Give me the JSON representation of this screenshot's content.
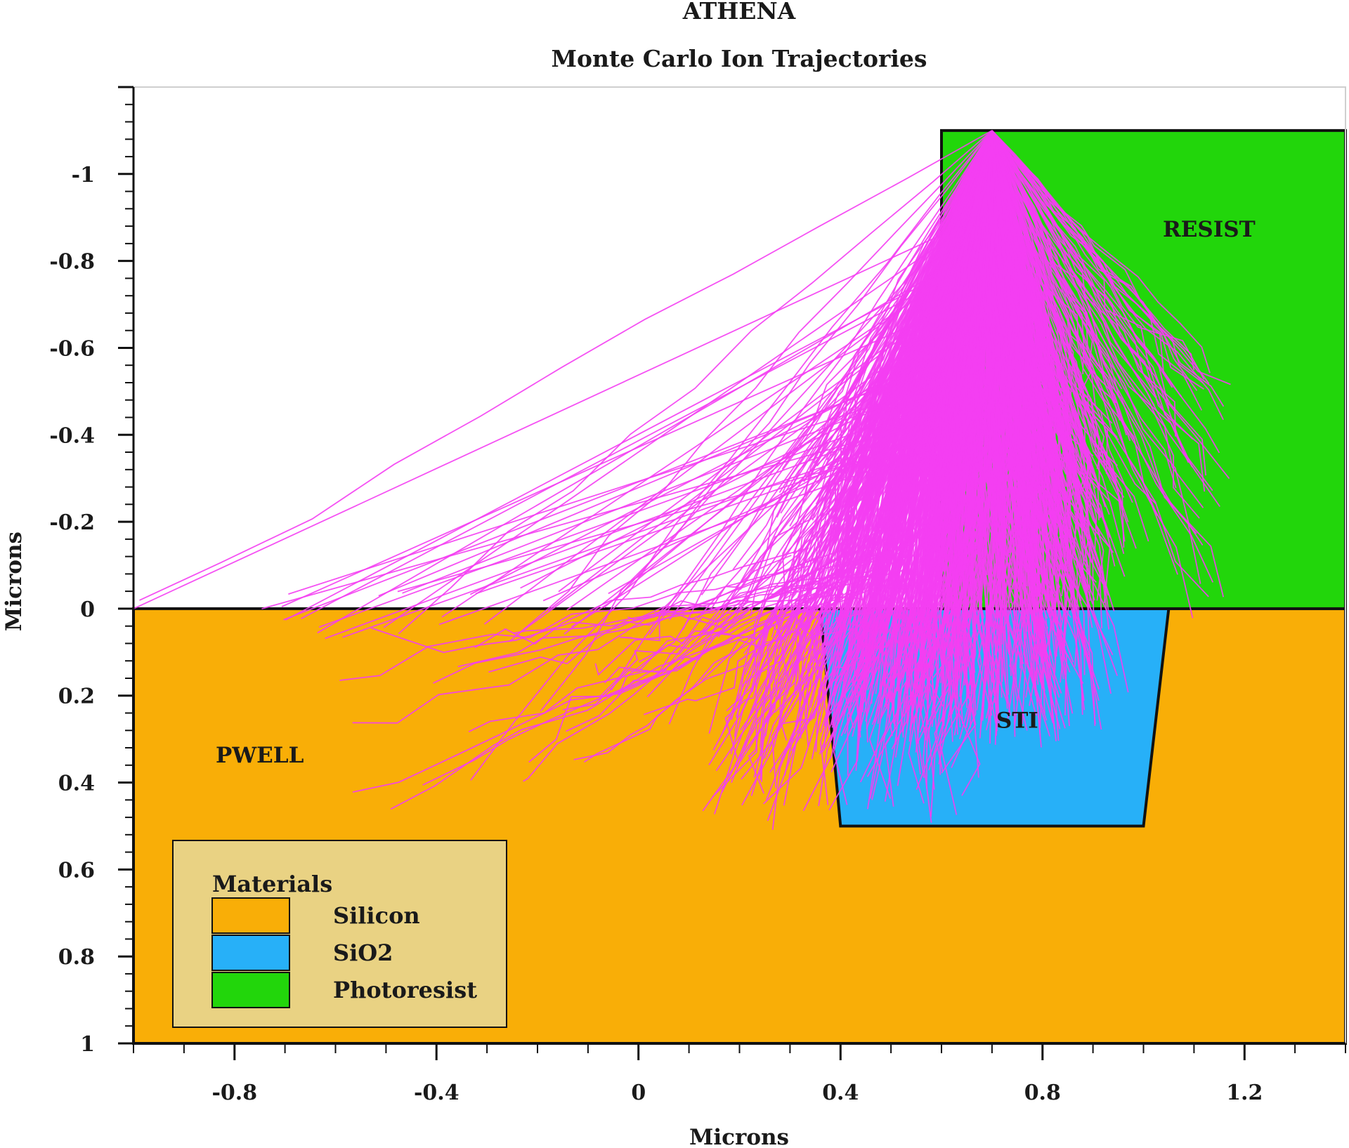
{
  "chart_data": {
    "type": "scatter",
    "title": "ATHENA",
    "subtitle": "Monte Carlo Ion Trajectories",
    "xlabel": "Microns",
    "ylabel": "Microns",
    "xlim": [
      -1.0,
      1.4
    ],
    "ylim": [
      1.0,
      -1.2
    ],
    "y_inverted": true,
    "xticks": [
      -0.8,
      -0.4,
      0,
      0.4,
      0.8,
      1.2
    ],
    "xtick_labels": [
      "-0.8",
      "-0.4",
      "0",
      "0.4",
      "0.8",
      "1.2"
    ],
    "yticks": [
      -1,
      -0.8,
      -0.6,
      -0.4,
      -0.2,
      0,
      0.2,
      0.4,
      0.6,
      0.8,
      1
    ],
    "ytick_labels": [
      "-1",
      "-0.8",
      "-0.6",
      "-0.4",
      "-0.2",
      "0",
      "0.2",
      "0.4",
      "0.6",
      "0.8",
      "1"
    ],
    "regions": [
      {
        "name": "PWELL",
        "material": "Silicon",
        "color": "#F9AE07",
        "polygon": [
          [
            -1.0,
            0.0
          ],
          [
            1.4,
            0.0
          ],
          [
            1.4,
            1.0
          ],
          [
            -1.0,
            1.0
          ]
        ]
      },
      {
        "name": "STI",
        "material": "SiO2",
        "color": "#27B0F8",
        "polygon": [
          [
            0.36,
            0.0
          ],
          [
            1.05,
            0.0
          ],
          [
            1.0,
            0.5
          ],
          [
            0.4,
            0.5
          ]
        ]
      },
      {
        "name": "RESIST",
        "material": "Photoresist",
        "color": "#22D60B",
        "polygon": [
          [
            0.6,
            -1.1
          ],
          [
            1.4,
            -1.1
          ],
          [
            1.4,
            0.0
          ],
          [
            0.6,
            0.0
          ]
        ]
      }
    ],
    "region_labels": [
      {
        "text": "PWELL",
        "x": -0.75,
        "y": 0.34
      },
      {
        "text": "STI",
        "x": 0.75,
        "y": 0.26
      },
      {
        "text": "RESIST",
        "x": 1.13,
        "y": -0.87
      }
    ],
    "ion_source": {
      "x": 0.7,
      "y": -1.1
    },
    "trajectory_color": "#F43EF2",
    "trajectory_endpoints": [
      [
        -1.0,
        0.0
      ],
      [
        -0.48,
        0.07
      ],
      [
        -0.25,
        0.07
      ],
      [
        -0.34,
        0.41
      ],
      [
        -0.2,
        0.24
      ],
      [
        -0.05,
        0.2
      ],
      [
        0.05,
        0.28
      ],
      [
        0.1,
        0.05
      ],
      [
        0.15,
        0.33
      ],
      [
        0.22,
        0.38
      ],
      [
        0.27,
        0.47
      ],
      [
        0.33,
        0.48
      ],
      [
        0.3,
        -0.2
      ],
      [
        0.2,
        -0.1
      ],
      [
        0.45,
        0.48
      ],
      [
        0.5,
        0.4
      ],
      [
        0.6,
        0.35
      ],
      [
        0.66,
        0.39
      ],
      [
        0.72,
        0.1
      ],
      [
        0.95,
        -0.45
      ],
      [
        1.1,
        -0.5
      ],
      [
        1.13,
        -0.52
      ],
      [
        1.15,
        -0.35
      ],
      [
        1.17,
        -0.45
      ],
      [
        1.06,
        -0.27
      ],
      [
        0.98,
        -0.12
      ],
      [
        0.9,
        -0.2
      ],
      [
        0.82,
        -0.08
      ],
      [
        0.7,
        -0.05
      ],
      [
        0.87,
        -0.3
      ]
    ],
    "legend": {
      "title": "Materials",
      "position": "bottom-left",
      "items": [
        {
          "label": "Silicon",
          "color": "#F9AE07"
        },
        {
          "label": "SiO2",
          "color": "#27B0F8"
        },
        {
          "label": "Photoresist",
          "color": "#22D60B"
        }
      ]
    }
  }
}
